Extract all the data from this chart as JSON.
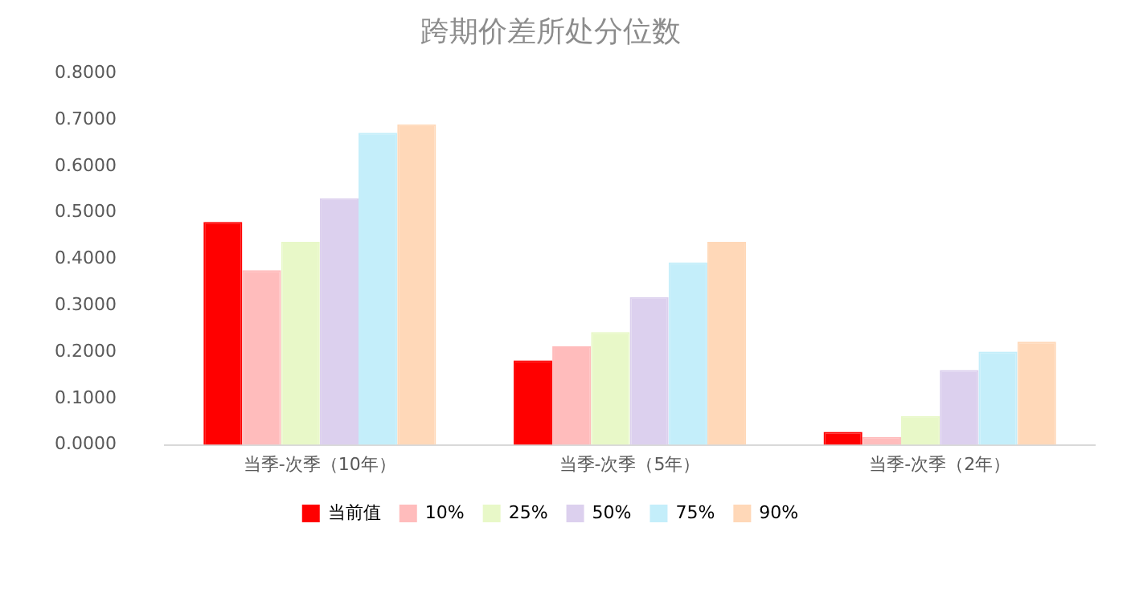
{
  "chart_data": {
    "type": "bar",
    "title": "跨期价差所处分位数",
    "categories": [
      "当季-次季（10年）",
      "当季-次季（5年）",
      "当季-次季（2年）"
    ],
    "series": [
      {
        "name": "当前值",
        "color": "#ff0000",
        "values": [
          0.48,
          0.182,
          0.028
        ]
      },
      {
        "name": "10%",
        "color": "#ffbcbc",
        "values": [
          0.376,
          0.212,
          0.017
        ]
      },
      {
        "name": "25%",
        "color": "#e8f8c8",
        "values": [
          0.437,
          0.243,
          0.062
        ]
      },
      {
        "name": "50%",
        "color": "#dcd0ee",
        "values": [
          0.531,
          0.318,
          0.161
        ]
      },
      {
        "name": "75%",
        "color": "#c4eefa",
        "values": [
          0.672,
          0.393,
          0.201
        ]
      },
      {
        "name": "90%",
        "color": "#ffd8b8",
        "values": [
          0.69,
          0.437,
          0.222
        ]
      }
    ],
    "ylim": [
      0,
      0.8
    ],
    "yticks": [
      {
        "value": 0,
        "label": "0.0000"
      },
      {
        "value": 0.1,
        "label": "0.1000"
      },
      {
        "value": 0.2,
        "label": "0.2000"
      },
      {
        "value": 0.3,
        "label": "0.3000"
      },
      {
        "value": 0.4,
        "label": "0.4000"
      },
      {
        "value": 0.5,
        "label": "0.5000"
      },
      {
        "value": 0.6,
        "label": "0.6000"
      },
      {
        "value": 0.7,
        "label": "0.7000"
      },
      {
        "value": 0.8,
        "label": "0.8000"
      }
    ],
    "grid": false,
    "legend": "bottom"
  }
}
